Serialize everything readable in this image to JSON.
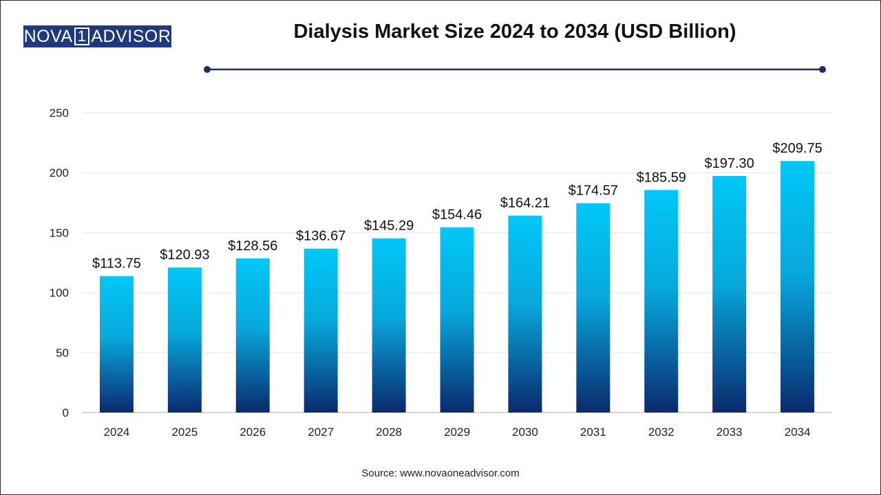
{
  "brand": {
    "logo_left": "NOVA",
    "logo_mid": "1",
    "logo_right": "ADVISOR"
  },
  "source": "Source: www.novaoneadvisor.com",
  "colors": {
    "bar_top": "#00c8f8",
    "bar_bottom": "#0a2a6e",
    "title_rule": "#1f2d5c",
    "logo_bg": "#1f3a7a"
  },
  "chart_data": {
    "type": "bar",
    "title": "Dialysis Market Size 2024 to 2034 (USD Billion)",
    "categories": [
      "2024",
      "2025",
      "2026",
      "2027",
      "2028",
      "2029",
      "2030",
      "2031",
      "2032",
      "2033",
      "2034"
    ],
    "values": [
      113.75,
      120.93,
      128.56,
      136.67,
      145.29,
      154.46,
      164.21,
      174.57,
      185.59,
      197.3,
      209.75
    ],
    "data_labels": [
      "$113.75",
      "$120.93",
      "$128.56",
      "$136.67",
      "$145.29",
      "$154.46",
      "$164.21",
      "$174.57",
      "$185.59",
      "$197.30",
      "$209.75"
    ],
    "xlabel": "",
    "ylabel": "",
    "ylim": [
      0,
      250
    ],
    "yticks": [
      0,
      50,
      100,
      150,
      200,
      250
    ],
    "grid": true,
    "legend": "none"
  }
}
